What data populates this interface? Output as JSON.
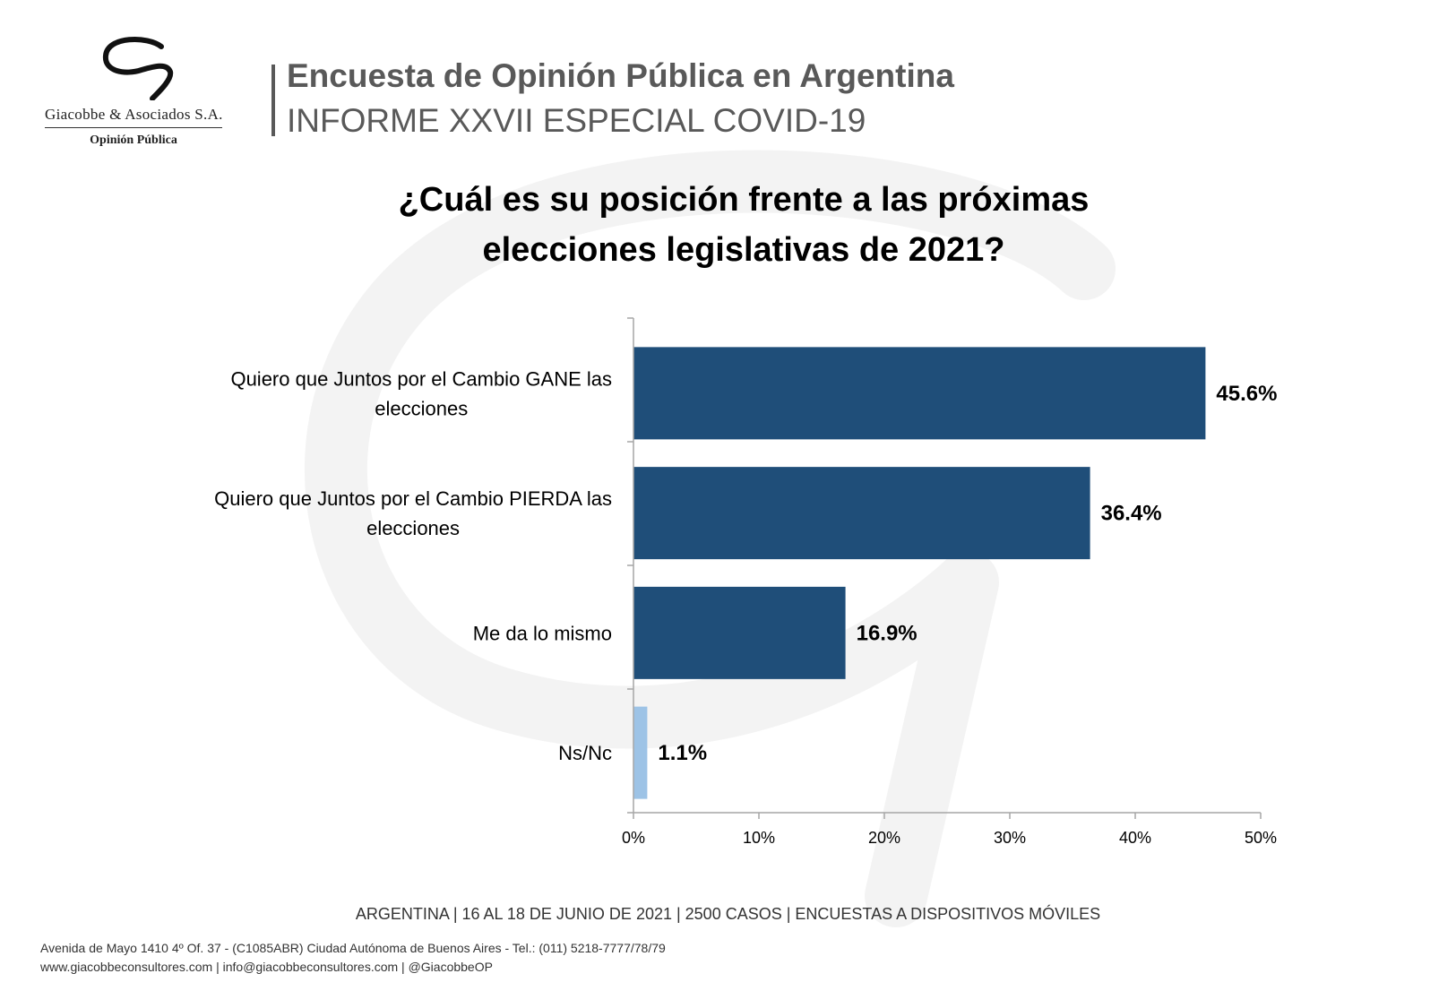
{
  "brand": {
    "name": "Giacobbe & Asociados S.A.",
    "tagline": "Opinión Pública"
  },
  "header": {
    "title": "Encuesta de Opinión Pública en Argentina",
    "subtitle": "INFORME XXVII ESPECIAL COVID-19"
  },
  "question": {
    "line1": "¿Cuál es su posición frente a las próximas",
    "line2": "elecciones legislativas de 2021?"
  },
  "chart_data": {
    "type": "bar",
    "orientation": "horizontal",
    "title": "¿Cuál es su posición frente a las próximas elecciones legislativas de 2021?",
    "categories": [
      [
        "Quiero que Juntos por el Cambio GANE las",
        "elecciones"
      ],
      [
        "Quiero que Juntos por el Cambio PIERDA las",
        "elecciones"
      ],
      [
        "Me da lo mismo"
      ],
      [
        "Ns/Nc"
      ]
    ],
    "values": [
      45.6,
      36.4,
      16.9,
      1.1
    ],
    "data_labels": [
      "45.6%",
      "36.4%",
      "16.9%",
      "1.1%"
    ],
    "bar_colors": [
      "#1F4E79",
      "#1F4E79",
      "#1F4E79",
      "#9DC3E6"
    ],
    "xlim": [
      0,
      50
    ],
    "x_ticks": [
      0,
      10,
      20,
      30,
      40,
      50
    ],
    "x_tick_labels": [
      "0%",
      "10%",
      "20%",
      "30%",
      "40%",
      "50%"
    ],
    "grid": false,
    "legend": "none"
  },
  "footer": {
    "survey_info": "ARGENTINA | 16 AL 18 DE JUNIO DE 2021 | 2500 CASOS | ENCUESTAS A DISPOSITIVOS MÓVILES",
    "address": "Avenida de Mayo 1410 4º Of. 37 - (C1085ABR) Ciudad Autónoma de Buenos Aires - Tel.: (011) 5218-7777/78/79",
    "contact": "www.giacobbeconsultores.com | info@giacobbeconsultores.com | @GiacobbeOP"
  },
  "colors": {
    "bar_primary": "#1F4E79",
    "bar_secondary": "#9DC3E6",
    "header_gray": "#595959"
  }
}
